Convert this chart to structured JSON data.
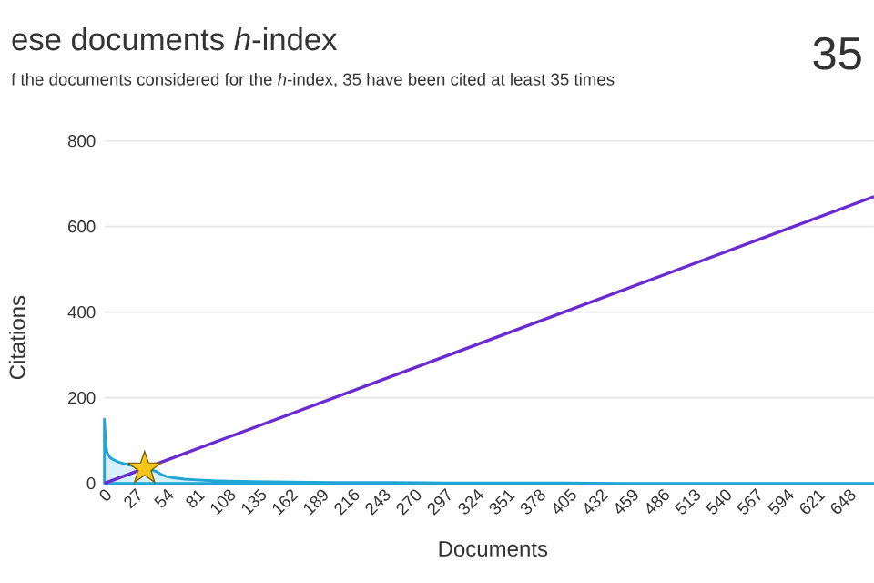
{
  "chart_data": {
    "type": "line",
    "title": "ese documents *h*-index",
    "subtitle": "f the documents considered for the *h*-index, 35 have been cited at least 35 times",
    "xlabel": "Documents",
    "ylabel": "Citations",
    "annotations": [
      "35"
    ],
    "xlim": [
      0,
      670
    ],
    "xticks": [
      0,
      27,
      54,
      81,
      108,
      135,
      162,
      189,
      216,
      243,
      270,
      297,
      324,
      351,
      378,
      405,
      432,
      459,
      486,
      513,
      540,
      567,
      594,
      621,
      648
    ],
    "ylim": [
      0,
      800
    ],
    "yticks": [
      0,
      200,
      400,
      600,
      800
    ],
    "grid": "y",
    "series": [
      {
        "type": "area",
        "color": "#1fa5d6",
        "x": [
          0,
          1,
          2,
          3,
          5,
          8,
          12,
          16,
          20,
          25,
          30,
          35,
          40,
          45,
          50,
          54,
          60,
          70,
          81,
          95,
          108,
          130,
          162,
          200,
          250,
          300,
          350,
          400,
          450,
          500,
          550,
          600,
          670
        ],
        "values": [
          150,
          100,
          75,
          68,
          60,
          55,
          50,
          47,
          44,
          41,
          38,
          null,
          32,
          28,
          20,
          16,
          13,
          10,
          8,
          6,
          5,
          4,
          3,
          2,
          2,
          1,
          1,
          1,
          0,
          0,
          0,
          0,
          0
        ]
      },
      {
        "type": "line",
        "color": "#6a2bd1",
        "x": [
          0,
          670
        ],
        "values": [
          0,
          670
        ]
      },
      {
        "type": "scatter",
        "color": "#f5c518",
        "marker": "star",
        "x": [
          35
        ],
        "values": [
          35
        ]
      }
    ]
  }
}
